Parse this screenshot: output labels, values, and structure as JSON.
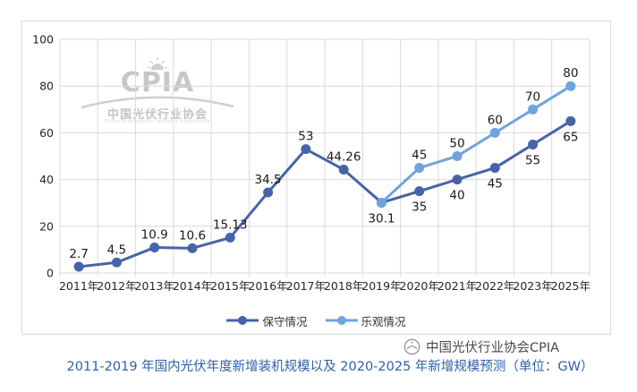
{
  "watermark": {
    "brand": "CPIA",
    "cn": "中国光伏行业协会",
    "en": "China Photovoltaic Industry Association"
  },
  "branding": {
    "label": "中国光伏行业协会CPIA"
  },
  "caption": "2011-2019 年国内光伏年度新增装机规模以及 2020-2025 年新增规模预测（单位：GW）",
  "colors": {
    "conservative": "#4763A8",
    "optimistic": "#6FA3DC",
    "grid": "#D9D9D9",
    "axis_text": "#262626",
    "label_text": "#1A1A1A",
    "caption_text": "#2F5FA8",
    "watermark_gray": "#C7C7C7",
    "branding_gray": "#8F8F8F"
  },
  "chart_data": {
    "type": "line",
    "title": "2011-2019 年国内光伏年度新增装机规模以及 2020-2025 年新增规模预测（单位：GW）",
    "unit": "GW",
    "categories": [
      "2011年",
      "2012年",
      "2013年",
      "2014年",
      "2015年",
      "2016年",
      "2017年",
      "2018年",
      "2019年",
      "2020年",
      "2021年",
      "2022年",
      "2023年",
      "2025年"
    ],
    "y_ticks": [
      0,
      20,
      40,
      60,
      80,
      100
    ],
    "ylim": [
      0,
      100
    ],
    "grid": true,
    "legend_position": "bottom",
    "series": [
      {
        "name": "保守情况",
        "color_key": "conservative",
        "values": [
          2.7,
          4.5,
          10.9,
          10.6,
          15.13,
          34.5,
          53,
          44.26,
          30.1,
          35,
          40,
          45,
          55,
          65
        ],
        "labels": [
          "2.7",
          "4.5",
          "10.9",
          "10.6",
          "15.13",
          "34.5",
          "53",
          "44.26",
          "30.1",
          "35",
          "40",
          "45",
          "55",
          "65"
        ],
        "label_pos": [
          "above",
          "above",
          "above",
          "above",
          "above",
          "above",
          "above",
          "above",
          "below",
          "below",
          "below",
          "below",
          "below",
          "below"
        ]
      },
      {
        "name": "乐观情况",
        "color_key": "optimistic",
        "values": [
          null,
          null,
          null,
          null,
          null,
          null,
          null,
          null,
          30.1,
          45,
          50,
          60,
          70,
          80
        ],
        "labels": [
          null,
          null,
          null,
          null,
          null,
          null,
          null,
          null,
          null,
          "45",
          "50",
          "60",
          "70",
          "80"
        ],
        "label_pos": [
          null,
          null,
          null,
          null,
          null,
          null,
          null,
          null,
          null,
          "above",
          "above",
          "above",
          "above",
          "above"
        ]
      }
    ]
  }
}
